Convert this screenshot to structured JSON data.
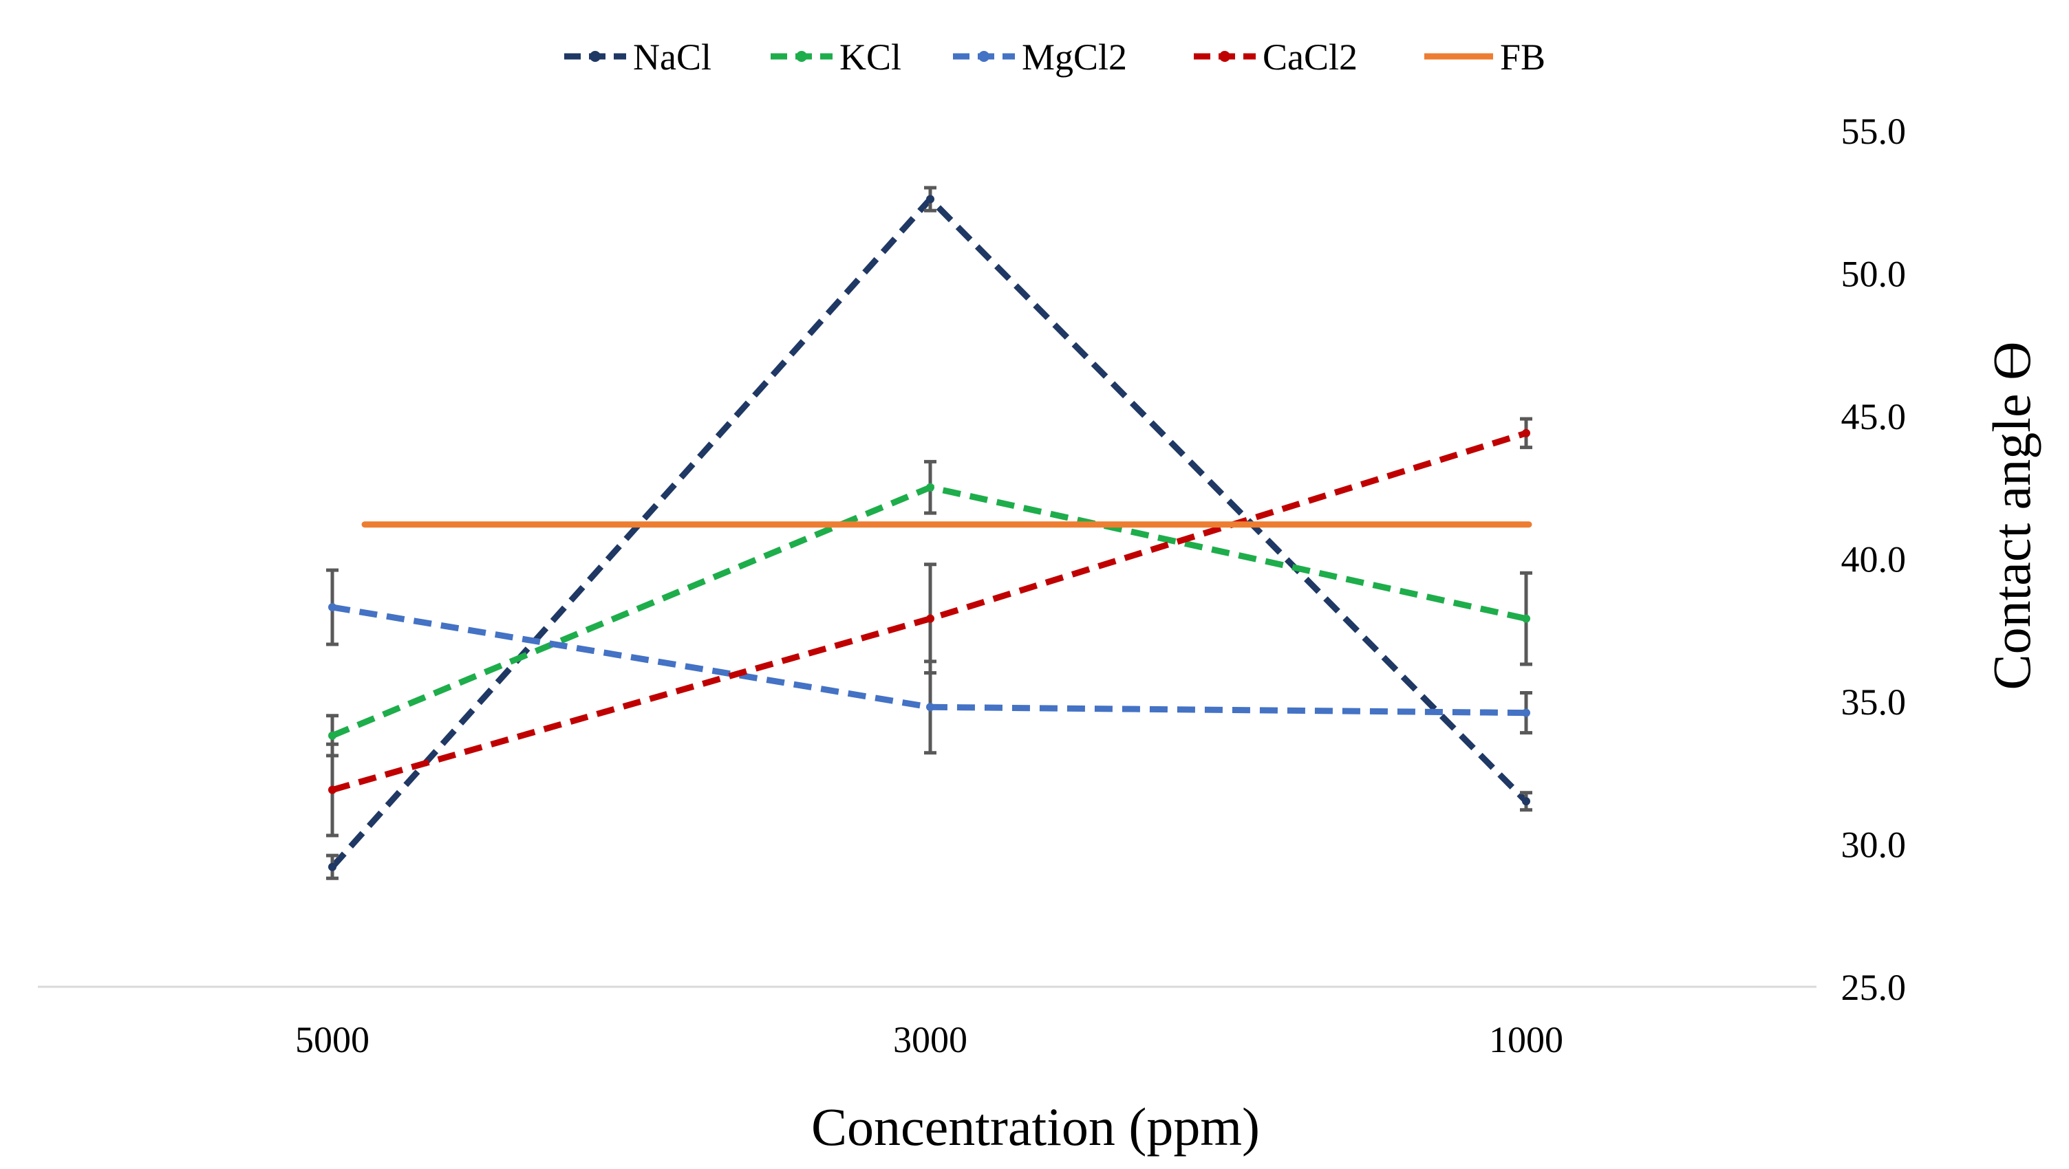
{
  "chart_data": {
    "type": "line",
    "title": "",
    "xlabel": "Concentration  (ppm)",
    "ylabel": "Contact angle ϴ",
    "categories": [
      "5000",
      "3000",
      "1000"
    ],
    "ylim": [
      25,
      55
    ],
    "yticks": [
      "25.0",
      "30.0",
      "35.0",
      "40.0",
      "45.0",
      "50.0",
      "55.0"
    ],
    "y_axis_side": "right",
    "legend_position": "top",
    "grid": false,
    "series": [
      {
        "name": "NaCl",
        "color": "#1F3864",
        "dash": true,
        "values": [
          29.2,
          52.6,
          31.5
        ],
        "errors": [
          0.4,
          0.4,
          0.3
        ]
      },
      {
        "name": "KCl",
        "color": "#1EAD4B",
        "dash": true,
        "values": [
          33.8,
          42.5,
          37.9
        ],
        "errors": [
          0.7,
          0.9,
          1.6
        ]
      },
      {
        "name": "MgCl2",
        "color": "#4472C4",
        "dash": true,
        "values": [
          38.3,
          34.8,
          34.6
        ],
        "errors": [
          1.3,
          1.6,
          0.7
        ]
      },
      {
        "name": "CaCl2",
        "color": "#C00000",
        "dash": true,
        "values": [
          31.9,
          37.9,
          44.4
        ],
        "errors": [
          1.6,
          1.9,
          0.5
        ]
      },
      {
        "name": "FB",
        "color": "#ED7D31",
        "dash": false,
        "values": [
          41.2,
          41.2,
          41.2
        ],
        "errors": null
      }
    ]
  }
}
